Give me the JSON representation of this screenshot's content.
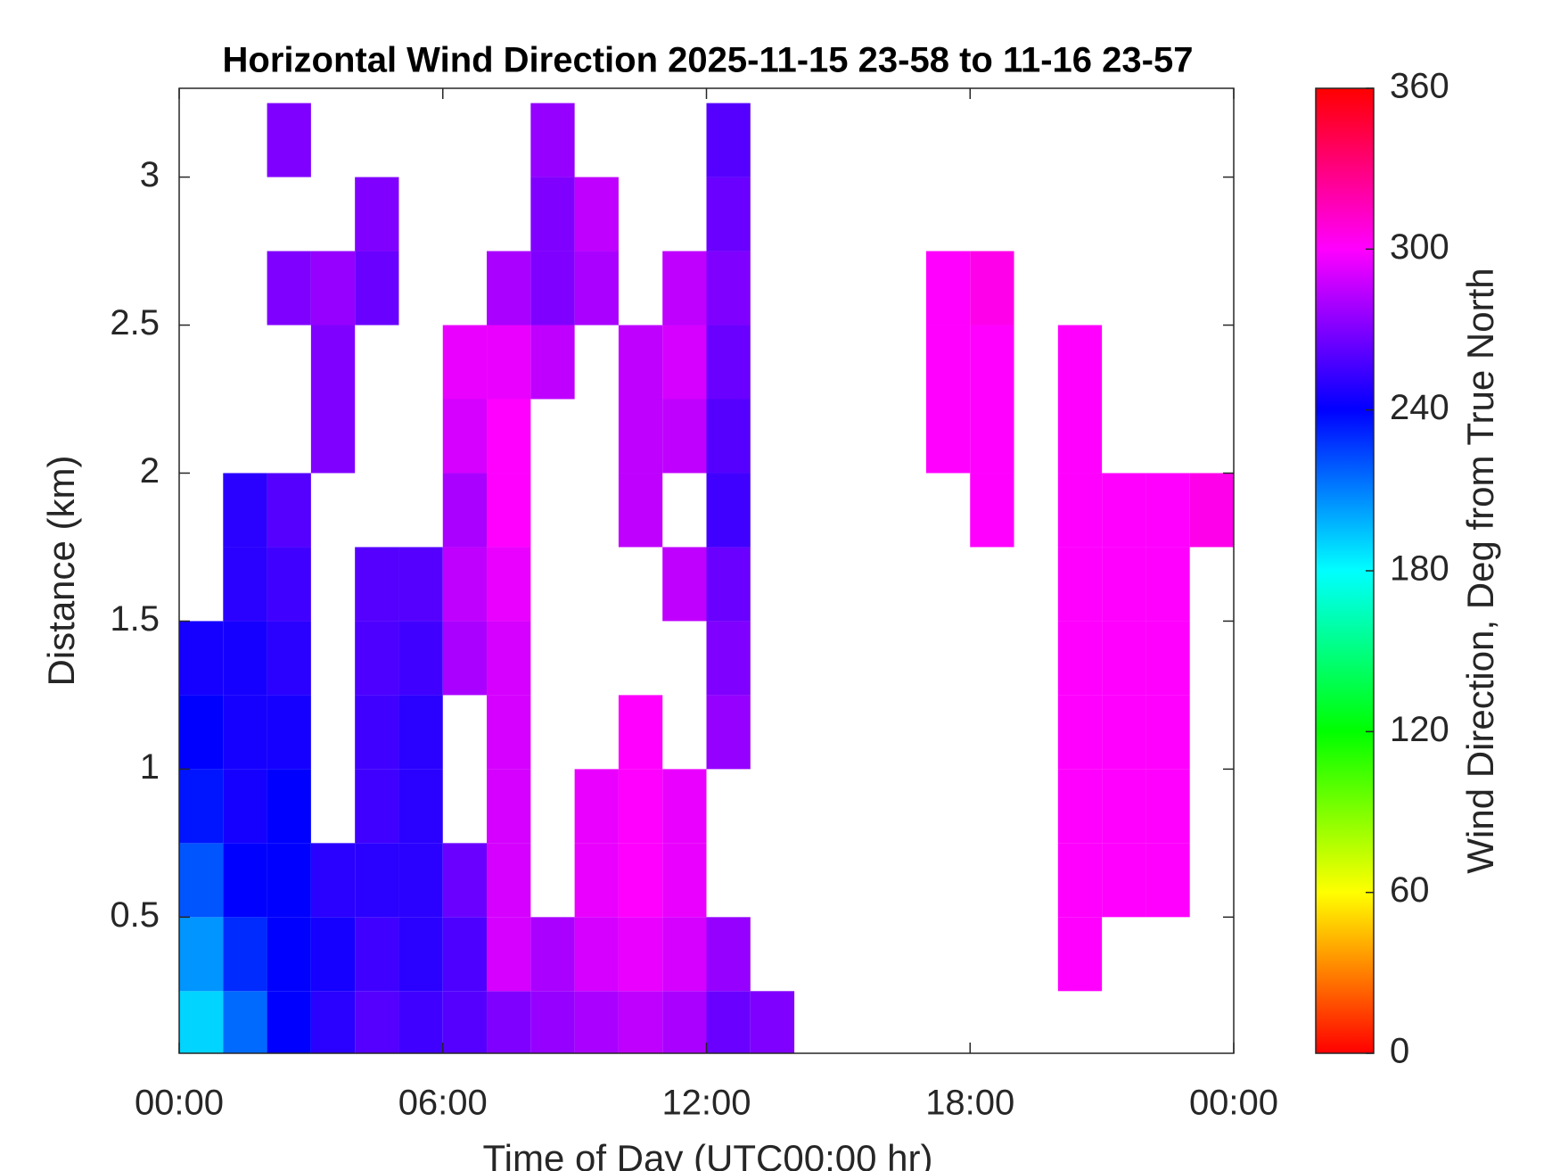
{
  "chart_data": {
    "type": "heatmap",
    "title": "Horizontal Wind Direction 2025-11-15 23-58 to 11-16 23-57",
    "x_label": "Time of Day (UTC00:00 hr)",
    "y_label": "Distance (km)",
    "colorbar_label": "Wind Direction, Deg from True North",
    "x": [
      0.5,
      1.5,
      2.5,
      3.5,
      4.5,
      5.5,
      6.5,
      7.5,
      8.5,
      9.5,
      10.5,
      11.5,
      12.5,
      13.5,
      14.5,
      15.5,
      16.5,
      17.5,
      18.5,
      19.5,
      20.5,
      21.5,
      22.5,
      23.5
    ],
    "y": [
      0.125,
      0.375,
      0.625,
      0.875,
      1.125,
      1.375,
      1.625,
      1.875,
      2.125,
      2.375,
      2.625,
      2.875,
      3.125
    ],
    "values": [
      [
        190,
        215,
        240,
        250,
        260,
        255,
        260,
        270,
        275,
        280,
        285,
        280,
        265,
        270,
        null,
        null,
        null,
        null,
        null,
        null,
        null,
        null,
        null,
        null
      ],
      [
        205,
        230,
        240,
        245,
        255,
        250,
        258,
        290,
        280,
        290,
        295,
        290,
        275,
        null,
        null,
        null,
        null,
        null,
        null,
        null,
        300,
        null,
        null,
        null
      ],
      [
        220,
        240,
        240,
        250,
        250,
        250,
        265,
        290,
        null,
        295,
        300,
        295,
        null,
        null,
        null,
        null,
        null,
        null,
        null,
        null,
        300,
        300,
        300,
        null
      ],
      [
        235,
        245,
        240,
        null,
        255,
        250,
        null,
        290,
        null,
        295,
        300,
        295,
        null,
        null,
        null,
        null,
        null,
        null,
        null,
        null,
        300,
        300,
        300,
        null
      ],
      [
        240,
        245,
        245,
        null,
        255,
        250,
        null,
        290,
        null,
        null,
        300,
        null,
        275,
        null,
        null,
        null,
        null,
        null,
        null,
        null,
        300,
        300,
        300,
        null
      ],
      [
        245,
        245,
        250,
        null,
        258,
        255,
        280,
        290,
        null,
        null,
        null,
        null,
        270,
        null,
        null,
        null,
        null,
        null,
        null,
        null,
        300,
        300,
        300,
        null
      ],
      [
        null,
        250,
        255,
        null,
        260,
        260,
        285,
        295,
        null,
        null,
        null,
        285,
        265,
        null,
        null,
        null,
        null,
        null,
        null,
        null,
        300,
        300,
        300,
        null
      ],
      [
        null,
        250,
        260,
        null,
        null,
        null,
        280,
        300,
        null,
        null,
        285,
        null,
        255,
        null,
        null,
        null,
        null,
        null,
        300,
        null,
        300,
        300,
        300,
        305
      ],
      [
        null,
        null,
        null,
        270,
        null,
        null,
        290,
        300,
        null,
        null,
        285,
        285,
        260,
        null,
        null,
        null,
        null,
        300,
        300,
        null,
        300,
        null,
        null,
        null
      ],
      [
        null,
        null,
        null,
        270,
        null,
        null,
        295,
        295,
        285,
        null,
        285,
        290,
        265,
        null,
        null,
        null,
        null,
        300,
        300,
        null,
        300,
        null,
        null,
        null
      ],
      [
        null,
        null,
        270,
        275,
        265,
        null,
        null,
        280,
        270,
        280,
        null,
        285,
        270,
        null,
        null,
        null,
        null,
        300,
        305,
        null,
        null,
        null,
        null,
        null
      ],
      [
        null,
        null,
        null,
        null,
        270,
        null,
        null,
        null,
        270,
        285,
        null,
        null,
        265,
        null,
        null,
        null,
        null,
        null,
        null,
        null,
        null,
        null,
        null,
        null
      ],
      [
        null,
        null,
        270,
        null,
        null,
        null,
        null,
        null,
        275,
        null,
        null,
        null,
        260,
        null,
        null,
        null,
        null,
        null,
        null,
        null,
        null,
        null,
        null,
        null
      ]
    ],
    "xlim": [
      0,
      24
    ],
    "xticks": [
      {
        "value": 0,
        "label": "00:00"
      },
      {
        "value": 6,
        "label": "06:00"
      },
      {
        "value": 12,
        "label": "12:00"
      },
      {
        "value": 18,
        "label": "18:00"
      },
      {
        "value": 24,
        "label": "00:00"
      }
    ],
    "ylim": [
      0.04,
      3.3
    ],
    "yticks": [
      0.5,
      1,
      1.5,
      2,
      2.5,
      3
    ],
    "zlim": [
      0,
      360
    ],
    "zticks": [
      0,
      60,
      120,
      180,
      240,
      300,
      360
    ]
  }
}
